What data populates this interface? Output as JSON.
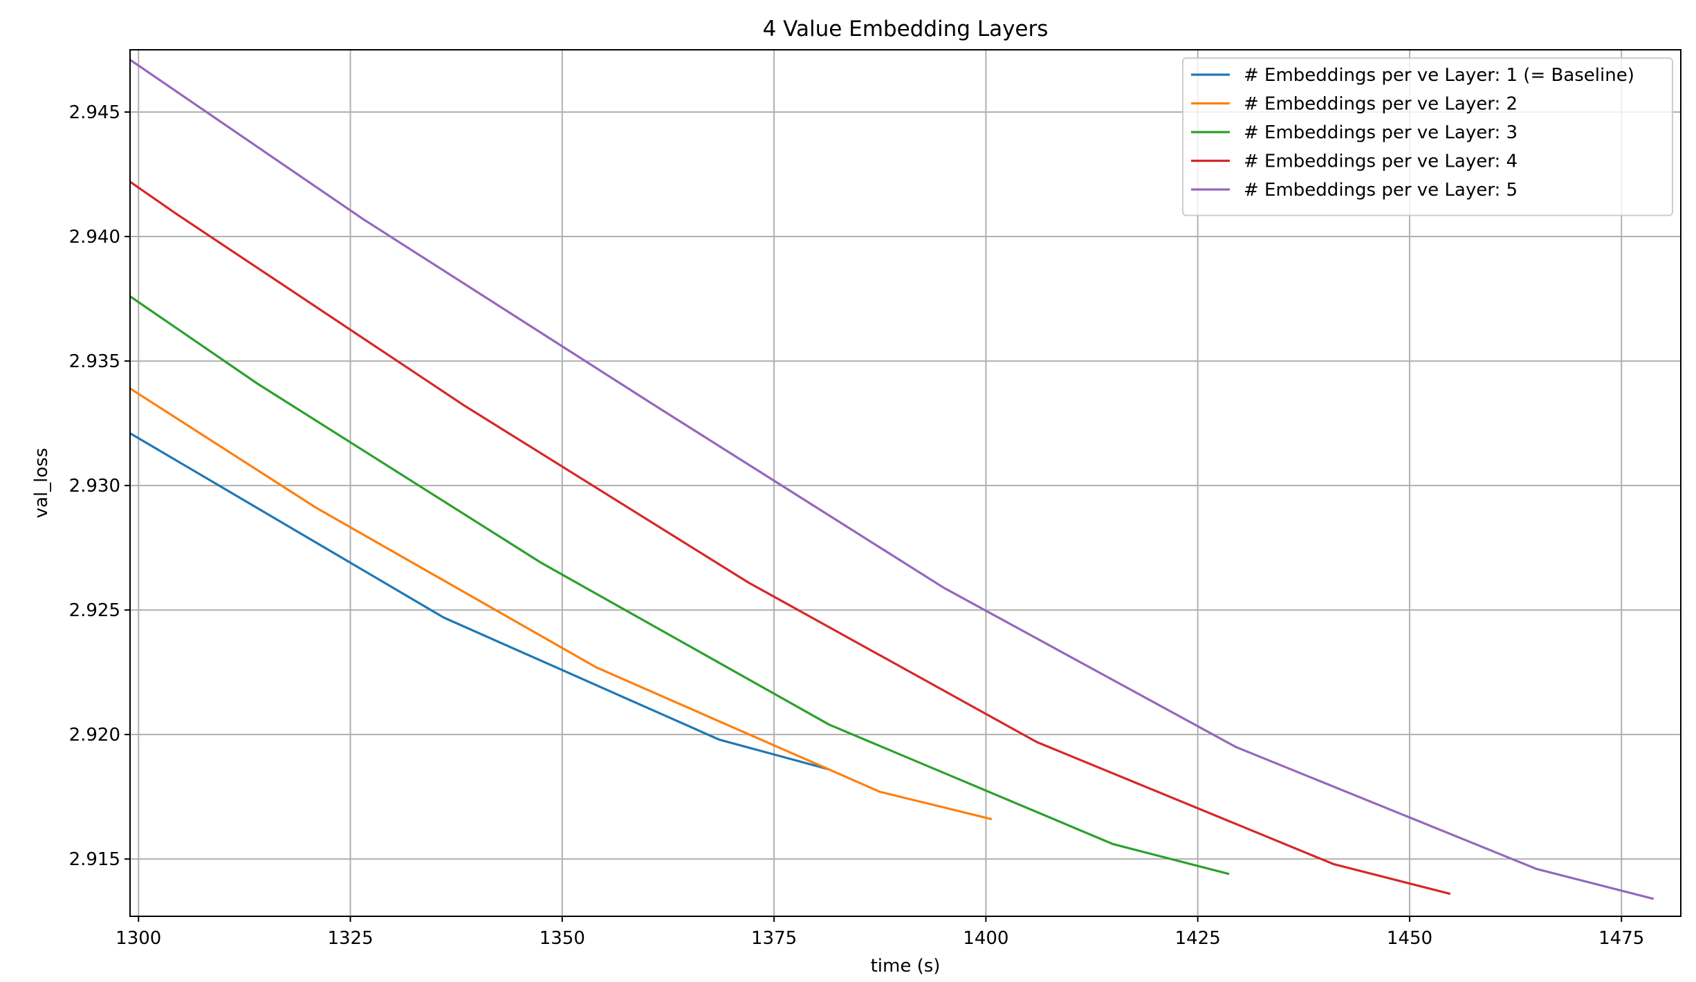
{
  "chart_data": {
    "type": "line",
    "title": "4 Value Embedding Layers",
    "xlabel": "time (s)",
    "ylabel": "val_loss",
    "xlim": [
      1299,
      1482
    ],
    "ylim": [
      2.9127,
      2.9475
    ],
    "xticks": [
      1300,
      1325,
      1350,
      1375,
      1400,
      1425,
      1450,
      1475
    ],
    "xtick_labels": [
      "1300",
      "1325",
      "1350",
      "1375",
      "1400",
      "1425",
      "1450",
      "1475"
    ],
    "yticks": [
      2.915,
      2.92,
      2.925,
      2.93,
      2.935,
      2.94,
      2.945
    ],
    "ytick_labels": [
      "2.915",
      "2.920",
      "2.925",
      "2.930",
      "2.935",
      "2.940",
      "2.945"
    ],
    "grid": true,
    "legend_position": "upper right",
    "series": [
      {
        "name": "# Embeddings per ve Layer: 1 (= Baseline)",
        "color": "#1f77b4",
        "x": [
          1299,
          1303.5,
          1336,
          1368.5,
          1381.5
        ],
        "y": [
          2.9321,
          2.9312,
          2.9247,
          2.9198,
          2.9186
        ]
      },
      {
        "name": "# Embeddings per ve Layer: 2",
        "color": "#ff7f0e",
        "x": [
          1299,
          1321,
          1354,
          1387.5,
          1400.7
        ],
        "y": [
          2.9339,
          2.9291,
          2.9227,
          2.9177,
          2.9166
        ]
      },
      {
        "name": "# Embeddings per ve Layer: 3",
        "color": "#2ca02c",
        "x": [
          1299,
          1314,
          1347.5,
          1381.5,
          1415,
          1428.7
        ],
        "y": [
          2.9376,
          2.9341,
          2.9269,
          2.9204,
          2.9156,
          2.9144
        ]
      },
      {
        "name": "# Embeddings per ve Layer: 4",
        "color": "#d62728",
        "x": [
          1299,
          1304.5,
          1338.5,
          1372,
          1406,
          1441,
          1454.8
        ],
        "y": [
          2.9422,
          2.9409,
          2.9332,
          2.9261,
          2.9197,
          2.9148,
          2.9136
        ]
      },
      {
        "name": "# Embeddings per ve Layer: 5",
        "color": "#9467bd",
        "x": [
          1299,
          1326.5,
          1361,
          1395,
          1429.5,
          1465,
          1478.8
        ],
        "y": [
          2.9471,
          2.9407,
          2.9332,
          2.9259,
          2.9195,
          2.9146,
          2.9134
        ]
      }
    ]
  }
}
